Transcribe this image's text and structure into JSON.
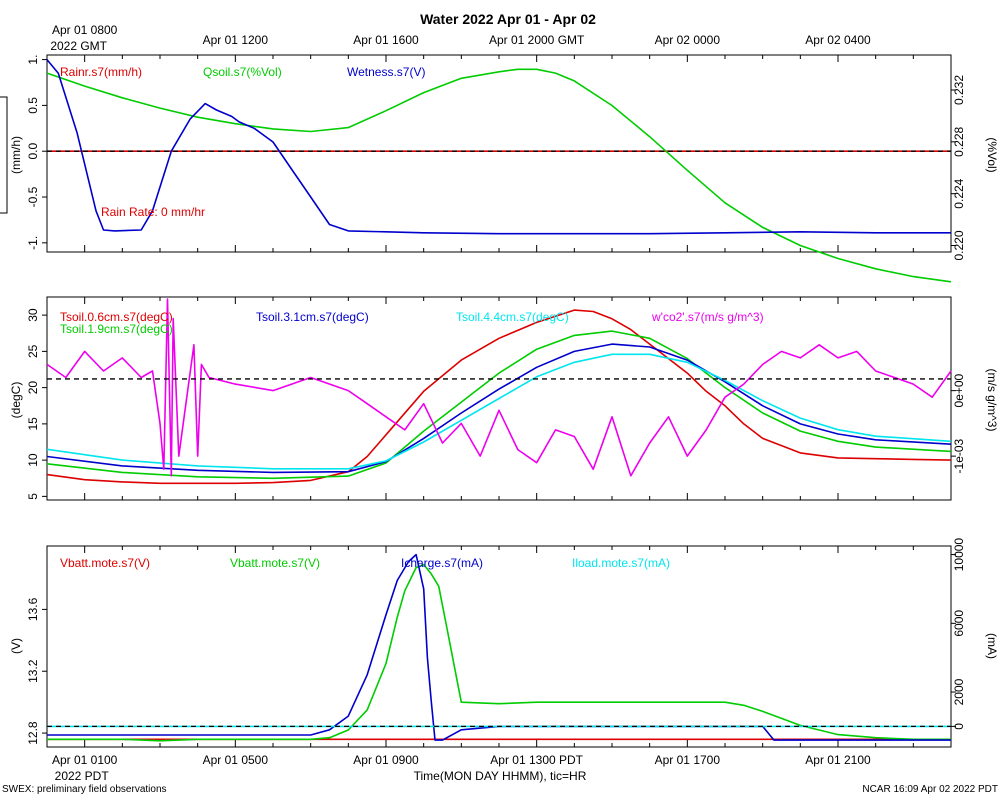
{
  "title": "Water 2022 Apr 01 - Apr 02",
  "top_axis": {
    "ticks": [
      {
        "t": 0,
        "line1": "Apr 01 0800",
        "line2": "2022 GMT"
      },
      {
        "t": 4,
        "line1": "Apr 01 1200"
      },
      {
        "t": 8,
        "line1": "Apr 01 1600"
      },
      {
        "t": 12,
        "line1": "Apr 01 2000 GMT"
      },
      {
        "t": 16,
        "line1": "Apr 02 0000"
      },
      {
        "t": 20,
        "line1": "Apr 02 0400"
      }
    ]
  },
  "bottom_axis": {
    "ticks": [
      {
        "t": 1,
        "line1": "Apr 01 0100",
        "line2": "2022 PDT"
      },
      {
        "t": 5,
        "line1": "Apr 01 0500"
      },
      {
        "t": 9,
        "line1": "Apr 01 0900"
      },
      {
        "t": 13,
        "line1": "Apr 01 1300 PDT"
      },
      {
        "t": 17,
        "line1": "Apr 01 1700"
      },
      {
        "t": 21,
        "line1": "Apr 01 2100"
      }
    ],
    "xlabel": "Time(MON DAY HHMM), tic=HR"
  },
  "footer": {
    "left": "SWEX: preliminary field observations",
    "right": "NCAR 16:09 Apr 02 2022 PDT"
  },
  "chart_data": [
    {
      "type": "line",
      "panel": "water",
      "x_unit": "hours since Apr 01 0000 PDT",
      "xlim": [
        0,
        24
      ],
      "ylim_left": [
        -1.1,
        1.05
      ],
      "ylim_right": [
        0.2195,
        0.2347
      ],
      "ylabel_left": "(mm/h)",
      "ylabel_right": "(%Vol)",
      "left_ticks": [
        1.0,
        0.5,
        0.0,
        -0.5,
        -1.0
      ],
      "left_tick_labels": [
        "1.",
        "0.5",
        "0.0",
        "-0.5",
        "-1."
      ],
      "right_ticks": [
        0.22,
        0.224,
        0.228,
        0.232
      ],
      "right_tick_labels": [
        "0.220",
        "0.224",
        "0.228",
        "0.232"
      ],
      "reference_line_left": 0.0,
      "annotation": {
        "text": "Rain Rate: 0 mm/hr",
        "color": "#dd0000"
      },
      "series": [
        {
          "name": "Rainr.s7(mm/h)",
          "color": "#dd0000",
          "axis": "left",
          "x": [
            0,
            24
          ],
          "y": [
            0,
            0
          ]
        },
        {
          "name": "Qsoil.s7(%Vol)",
          "color": "#00cc00",
          "axis": "right",
          "x": [
            0,
            1,
            2,
            3,
            4,
            5,
            6,
            7,
            8,
            9,
            10,
            11,
            12,
            12.5,
            13,
            13.5,
            14,
            15,
            16,
            17,
            18,
            19,
            20,
            21,
            22,
            23,
            24
          ],
          "y": [
            0.2333,
            0.2323,
            0.2314,
            0.2306,
            0.2299,
            0.2294,
            0.229,
            0.2288,
            0.2291,
            0.2304,
            0.2318,
            0.2329,
            0.2334,
            0.2336,
            0.2336,
            0.2333,
            0.2327,
            0.2308,
            0.2284,
            0.2258,
            0.2233,
            0.2214,
            0.22,
            0.219,
            0.2182,
            0.2176,
            0.2172
          ]
        },
        {
          "name": "Wetness.s7(V)",
          "color": "#0000cc",
          "axis": "left",
          "x": [
            0,
            0.3,
            0.8,
            1.3,
            1.5,
            1.8,
            2.5,
            2.8,
            3.3,
            3.8,
            4.2,
            4.5,
            4.9,
            5.1,
            5.5,
            6.0,
            6.5,
            7.0,
            7.5,
            8.0,
            10,
            12,
            14,
            16,
            18,
            20,
            22,
            24
          ],
          "y": [
            1.0,
            0.85,
            0.2,
            -0.65,
            -0.86,
            -0.87,
            -0.86,
            -0.65,
            0.0,
            0.35,
            0.52,
            0.45,
            0.38,
            0.32,
            0.25,
            0.1,
            -0.2,
            -0.5,
            -0.8,
            -0.87,
            -0.89,
            -0.9,
            -0.9,
            -0.9,
            -0.89,
            -0.88,
            -0.89,
            -0.89
          ]
        }
      ]
    },
    {
      "type": "line",
      "panel": "soil temperature",
      "x_unit": "hours since Apr 01 0000 PDT",
      "xlim": [
        0,
        24
      ],
      "ylim_left": [
        4.5,
        32.5
      ],
      "ylim_right": [
        -0.00167,
        0.00143
      ],
      "ylabel_left": "(degC)",
      "ylabel_right": "(m/s g/m^3)",
      "left_ticks": [
        5,
        10,
        15,
        20,
        25,
        30
      ],
      "left_tick_labels": [
        "5",
        "10",
        "15",
        "20",
        "25",
        "30"
      ],
      "right_ticks": [
        0.0,
        -0.001
      ],
      "right_tick_labels": [
        "0e+00",
        "-1e-03"
      ],
      "reference_line_left": 21.2,
      "series": [
        {
          "name": "Tsoil.0.6cm.s7(degC)",
          "color": "#dd0000",
          "axis": "left",
          "x": [
            0,
            1,
            2,
            3,
            4,
            5,
            6,
            7,
            8,
            8.5,
            9,
            10,
            11,
            12,
            13,
            14,
            14.5,
            15,
            15.5,
            16,
            16.5,
            17,
            17.5,
            18,
            18.5,
            19,
            20,
            21,
            22,
            23,
            24
          ],
          "y": [
            8.0,
            7.3,
            7.0,
            6.8,
            6.8,
            6.8,
            6.9,
            7.2,
            8.4,
            10.5,
            13.5,
            19.5,
            23.8,
            26.8,
            29.0,
            30.7,
            30.5,
            29.5,
            28.0,
            26.0,
            24.0,
            22.0,
            19.5,
            17.5,
            15.0,
            13.0,
            11.0,
            10.3,
            10.2,
            10.1,
            10.0
          ]
        },
        {
          "name": "Tsoil.1.9cm.s7(degC)",
          "color": "#00cc00",
          "axis": "left",
          "x": [
            0,
            2,
            4,
            6,
            8,
            9,
            10,
            11,
            12,
            13,
            14,
            15,
            16,
            17,
            18,
            19,
            20,
            21,
            22,
            24
          ],
          "y": [
            9.5,
            8.3,
            7.7,
            7.5,
            7.8,
            9.6,
            14.0,
            18.0,
            22.0,
            25.3,
            27.2,
            27.8,
            26.8,
            24.0,
            20.0,
            16.5,
            14.0,
            12.6,
            11.8,
            11.2
          ]
        },
        {
          "name": "Tsoil.3.1cm.s7(degC)",
          "color": "#0000cc",
          "axis": "left",
          "x": [
            0,
            2,
            4,
            6,
            8,
            9,
            10,
            11,
            12,
            13,
            14,
            15,
            16,
            17,
            18,
            19,
            20,
            21,
            22,
            24
          ],
          "y": [
            10.5,
            9.2,
            8.6,
            8.3,
            8.4,
            9.8,
            13.0,
            16.5,
            19.8,
            22.8,
            25.0,
            26.0,
            25.6,
            23.8,
            20.8,
            17.5,
            15.0,
            13.6,
            12.8,
            12.2
          ]
        },
        {
          "name": "Tsoil.4.4cm.s7(degC)",
          "color": "#00e5ee",
          "axis": "left",
          "x": [
            0,
            2,
            4,
            6,
            8,
            9,
            10,
            11,
            12,
            13,
            14,
            15,
            16,
            17,
            18,
            19,
            20,
            21,
            22,
            24
          ],
          "y": [
            11.5,
            10.0,
            9.2,
            8.8,
            8.8,
            9.9,
            12.5,
            15.5,
            18.5,
            21.5,
            23.5,
            24.6,
            24.6,
            23.5,
            21.0,
            18.2,
            15.8,
            14.2,
            13.3,
            12.6
          ]
        },
        {
          "name": "w'co2'.s7(m/s g/m^3)",
          "color": "#ee00ee",
          "axis": "right",
          "x": [
            0,
            0.5,
            1,
            1.5,
            2,
            2.5,
            2.8,
            3.0,
            3.1,
            3.2,
            3.3,
            3.35,
            3.5,
            3.9,
            4.0,
            4.1,
            4.3,
            5,
            6,
            7,
            8,
            8.5,
            9,
            9.5,
            10,
            10.5,
            11,
            11.5,
            12,
            12.5,
            13,
            13.5,
            14,
            14.5,
            15,
            15.5,
            16,
            16.5,
            17,
            17.5,
            18,
            18.5,
            19,
            19.5,
            20,
            20.5,
            21,
            21.5,
            22,
            22.5,
            23,
            23.5,
            24
          ],
          "y": [
            0.0004,
            0.0002,
            0.0006,
            0.0003,
            0.0005,
            0.0002,
            0.0003,
            -0.0005,
            -0.0012,
            0.0014,
            -0.0013,
            0.0011,
            -0.001,
            0.0007,
            -0.001,
            0.0004,
            0.0002,
            0.0001,
            0.0,
            0.0002,
            0.0,
            -0.0002,
            -0.0004,
            -0.0006,
            -0.0002,
            -0.0008,
            -0.0005,
            -0.001,
            -0.0003,
            -0.0009,
            -0.0011,
            -0.0006,
            -0.0007,
            -0.0012,
            -0.0004,
            -0.0013,
            -0.0008,
            -0.0004,
            -0.001,
            -0.0006,
            -0.0001,
            0.0001,
            0.0004,
            0.0006,
            0.0005,
            0.0007,
            0.0005,
            0.0006,
            0.0003,
            0.0002,
            0.0001,
            -0.0001,
            0.0003
          ]
        }
      ]
    },
    {
      "type": "line",
      "panel": "power",
      "x_unit": "hours since Apr 01 0000 PDT",
      "xlim": [
        0,
        24
      ],
      "ylim_left": [
        12.71,
        14.01
      ],
      "ylim_right": [
        -1200,
        10500
      ],
      "ylabel_left": "(V)",
      "ylabel_right": "(mA)",
      "left_ticks": [
        12.8,
        13.2,
        13.6
      ],
      "left_tick_labels": [
        "12.8",
        "13.2",
        "13.6"
      ],
      "right_ticks": [
        0,
        2000,
        6000,
        10000
      ],
      "right_tick_labels": [
        "0",
        "2000",
        "6000",
        "10000"
      ],
      "reference_line_right": 0,
      "series": [
        {
          "name": "Vbatt.mote.s7(V)",
          "color": "#dd0000",
          "axis": "left",
          "x": [
            0,
            24
          ],
          "y": [
            12.76,
            12.76
          ]
        },
        {
          "name": "Vbatt.mote.s7(V)",
          "color": "#00cc00",
          "axis": "left",
          "x": [
            0,
            1,
            2,
            3,
            4,
            5,
            6,
            7,
            7.5,
            8,
            8.5,
            9,
            9.3,
            9.5,
            9.8,
            10.0,
            10.2,
            10.4,
            10.6,
            11,
            12,
            13,
            14,
            15,
            16,
            17,
            18,
            18.5,
            19,
            20,
            21,
            22,
            23,
            24
          ],
          "y": [
            12.76,
            12.76,
            12.76,
            12.75,
            12.76,
            12.76,
            12.76,
            12.76,
            12.77,
            12.82,
            12.95,
            13.25,
            13.55,
            13.72,
            13.87,
            13.89,
            13.83,
            13.75,
            13.5,
            13.0,
            12.99,
            13.0,
            13.0,
            13.0,
            13.0,
            13.0,
            13.0,
            12.98,
            12.94,
            12.85,
            12.79,
            12.77,
            12.76,
            12.76
          ]
        },
        {
          "name": "Icharge.s7(mA)",
          "color": "#0000cc",
          "axis": "right",
          "x": [
            0,
            2,
            4,
            6,
            7,
            7.5,
            8,
            8.5,
            9,
            9.3,
            9.6,
            9.8,
            10.0,
            10.1,
            10.2,
            10.3,
            10.5,
            11,
            12,
            13,
            14,
            15,
            16,
            17,
            18,
            19,
            19.3,
            20,
            22,
            24
          ],
          "y": [
            -500,
            -500,
            -500,
            -500,
            -500,
            -200,
            600,
            3000,
            6500,
            8500,
            9600,
            10000,
            8000,
            4000,
            1500,
            -800,
            -800,
            -200,
            0,
            0,
            0,
            0,
            0,
            0,
            0,
            0,
            -800,
            -800,
            -800,
            -800
          ]
        },
        {
          "name": "Iload.mote.s7(mA)",
          "color": "#00e5ee",
          "axis": "right",
          "x": [
            0,
            24
          ],
          "y": [
            0,
            0
          ]
        }
      ]
    }
  ]
}
